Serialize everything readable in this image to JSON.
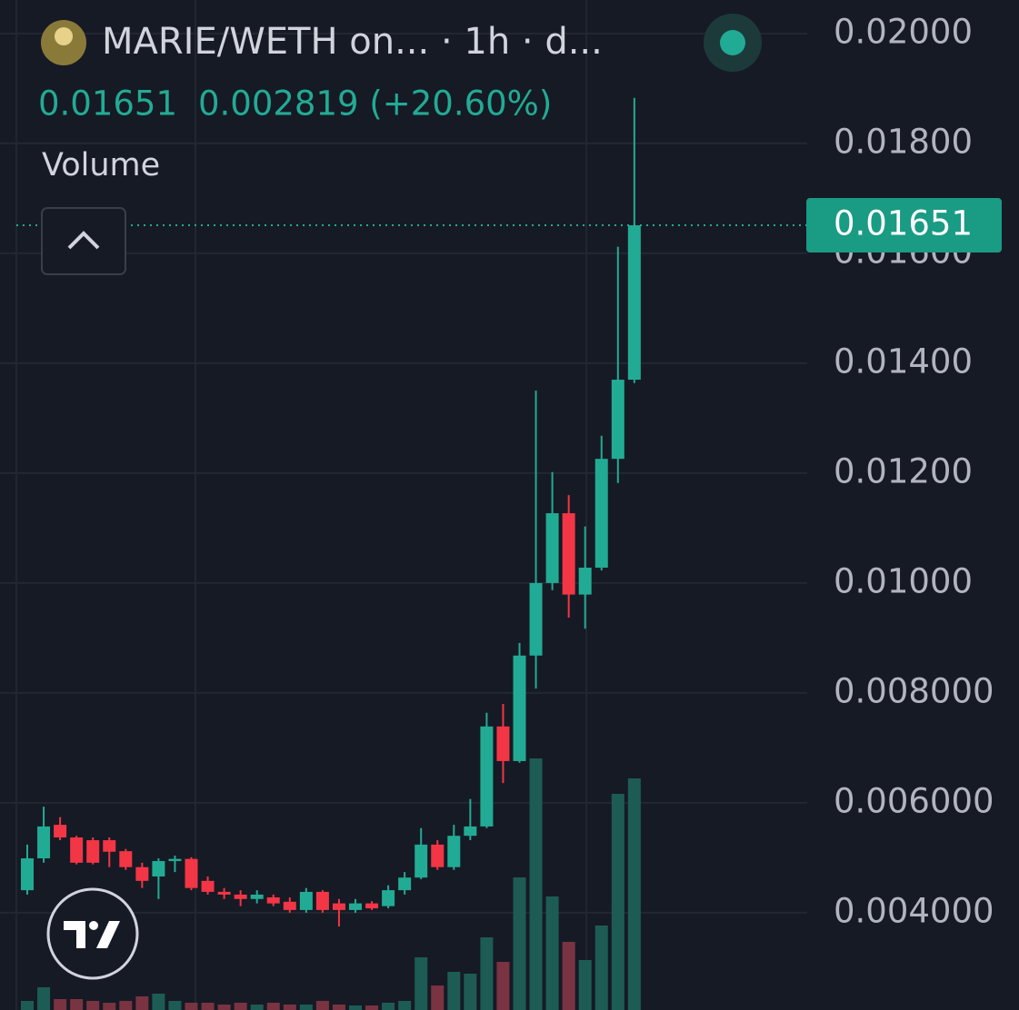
{
  "header": {
    "title": "MARIE/WETH on... · 1h · d...",
    "price": "0.01651",
    "change": "0.002819 (+20.60%)",
    "indicator": "Volume"
  },
  "chart_data": {
    "type": "candlestick",
    "up_color": "#22ab94",
    "down_color": "#f23645",
    "volume_up_color": "#1d5c55",
    "volume_down_color": "#7a3341",
    "ylim": [
      0.00223,
      0.02061
    ],
    "yticks": [
      {
        "value": 0.02,
        "label": "0.02000"
      },
      {
        "value": 0.018,
        "label": "0.01800"
      },
      {
        "value": 0.016,
        "label": "0.01600"
      },
      {
        "value": 0.014,
        "label": "0.01400"
      },
      {
        "value": 0.012,
        "label": "0.01200"
      },
      {
        "value": 0.01,
        "label": "0.01000"
      },
      {
        "value": 0.008,
        "label": "0.008000"
      },
      {
        "value": 0.006,
        "label": "0.006000"
      },
      {
        "value": 0.004,
        "label": "0.004000"
      }
    ],
    "grid": true,
    "last_price": 0.01651,
    "open": [
      0.00441,
      0.00499,
      0.0056,
      0.00537,
      0.00532,
      0.00532,
      0.00512,
      0.00483,
      0.00466,
      0.00494,
      0.00498,
      0.00458,
      0.00438,
      0.00433,
      0.00425,
      0.00428,
      0.0042,
      0.00405,
      0.00438,
      0.00417,
      0.00405,
      0.00417,
      0.00412,
      0.00441,
      0.00464,
      0.00524,
      0.00483,
      0.0054,
      0.00557,
      0.00739,
      0.00676,
      0.00868,
      0.01,
      0.01127,
      0.00979,
      0.01028,
      0.01226,
      0.0137
    ],
    "high": [
      0.00524,
      0.00593,
      0.00574,
      0.0054,
      0.00537,
      0.00537,
      0.00516,
      0.00491,
      0.00499,
      0.00504,
      0.00501,
      0.00466,
      0.00445,
      0.00441,
      0.00441,
      0.00433,
      0.00428,
      0.00445,
      0.00441,
      0.00425,
      0.00425,
      0.00421,
      0.0045,
      0.00474,
      0.00554,
      0.00532,
      0.0056,
      0.00607,
      0.00764,
      0.0078,
      0.00891,
      0.0135,
      0.01202,
      0.0116,
      0.01103,
      0.01268,
      0.01612,
      0.01883
    ],
    "low": [
      0.00433,
      0.00491,
      0.00532,
      0.00488,
      0.00488,
      0.00483,
      0.00478,
      0.00445,
      0.00425,
      0.00474,
      0.00441,
      0.00433,
      0.00425,
      0.00412,
      0.00417,
      0.00412,
      0.004,
      0.004,
      0.004,
      0.00375,
      0.004,
      0.00405,
      0.00408,
      0.00433,
      0.00461,
      0.00478,
      0.00478,
      0.00532,
      0.00554,
      0.00636,
      0.00673,
      0.00808,
      0.00987,
      0.00937,
      0.00917,
      0.01023,
      0.01182,
      0.01364
    ],
    "close": [
      0.00499,
      0.00557,
      0.00537,
      0.00491,
      0.00491,
      0.00511,
      0.00483,
      0.00458,
      0.00494,
      0.00498,
      0.00445,
      0.00438,
      0.00433,
      0.00425,
      0.00433,
      0.00417,
      0.00405,
      0.00438,
      0.00405,
      0.00405,
      0.00417,
      0.00408,
      0.00441,
      0.00464,
      0.00524,
      0.00483,
      0.0054,
      0.00557,
      0.00739,
      0.00676,
      0.00868,
      0.01,
      0.01127,
      0.00979,
      0.01028,
      0.01226,
      0.0137,
      0.01651
    ],
    "volume_lim": [
      0,
      1112
    ],
    "volume": [
      10,
      25,
      12,
      12,
      10,
      8,
      10,
      15,
      18,
      10,
      8,
      8,
      6,
      8,
      6,
      8,
      6,
      6,
      10,
      6,
      5,
      5,
      8,
      10,
      58,
      27,
      42,
      40,
      80,
      53,
      146,
      277,
      125,
      75,
      55,
      93,
      238,
      255
    ]
  }
}
